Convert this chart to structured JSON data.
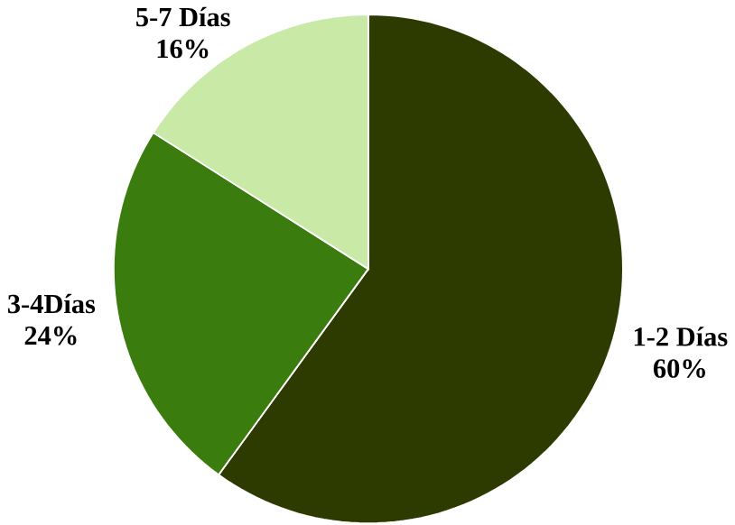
{
  "chart_data": {
    "type": "pie",
    "categories": [
      "1-2 Días",
      "3-4Días",
      "5-7 Días"
    ],
    "values": [
      60,
      24,
      16
    ],
    "value_labels": [
      "60%",
      "24%",
      "16%"
    ],
    "colors": [
      "#2e3b00",
      "#3a7d0e",
      "#c8eaa6"
    ]
  }
}
